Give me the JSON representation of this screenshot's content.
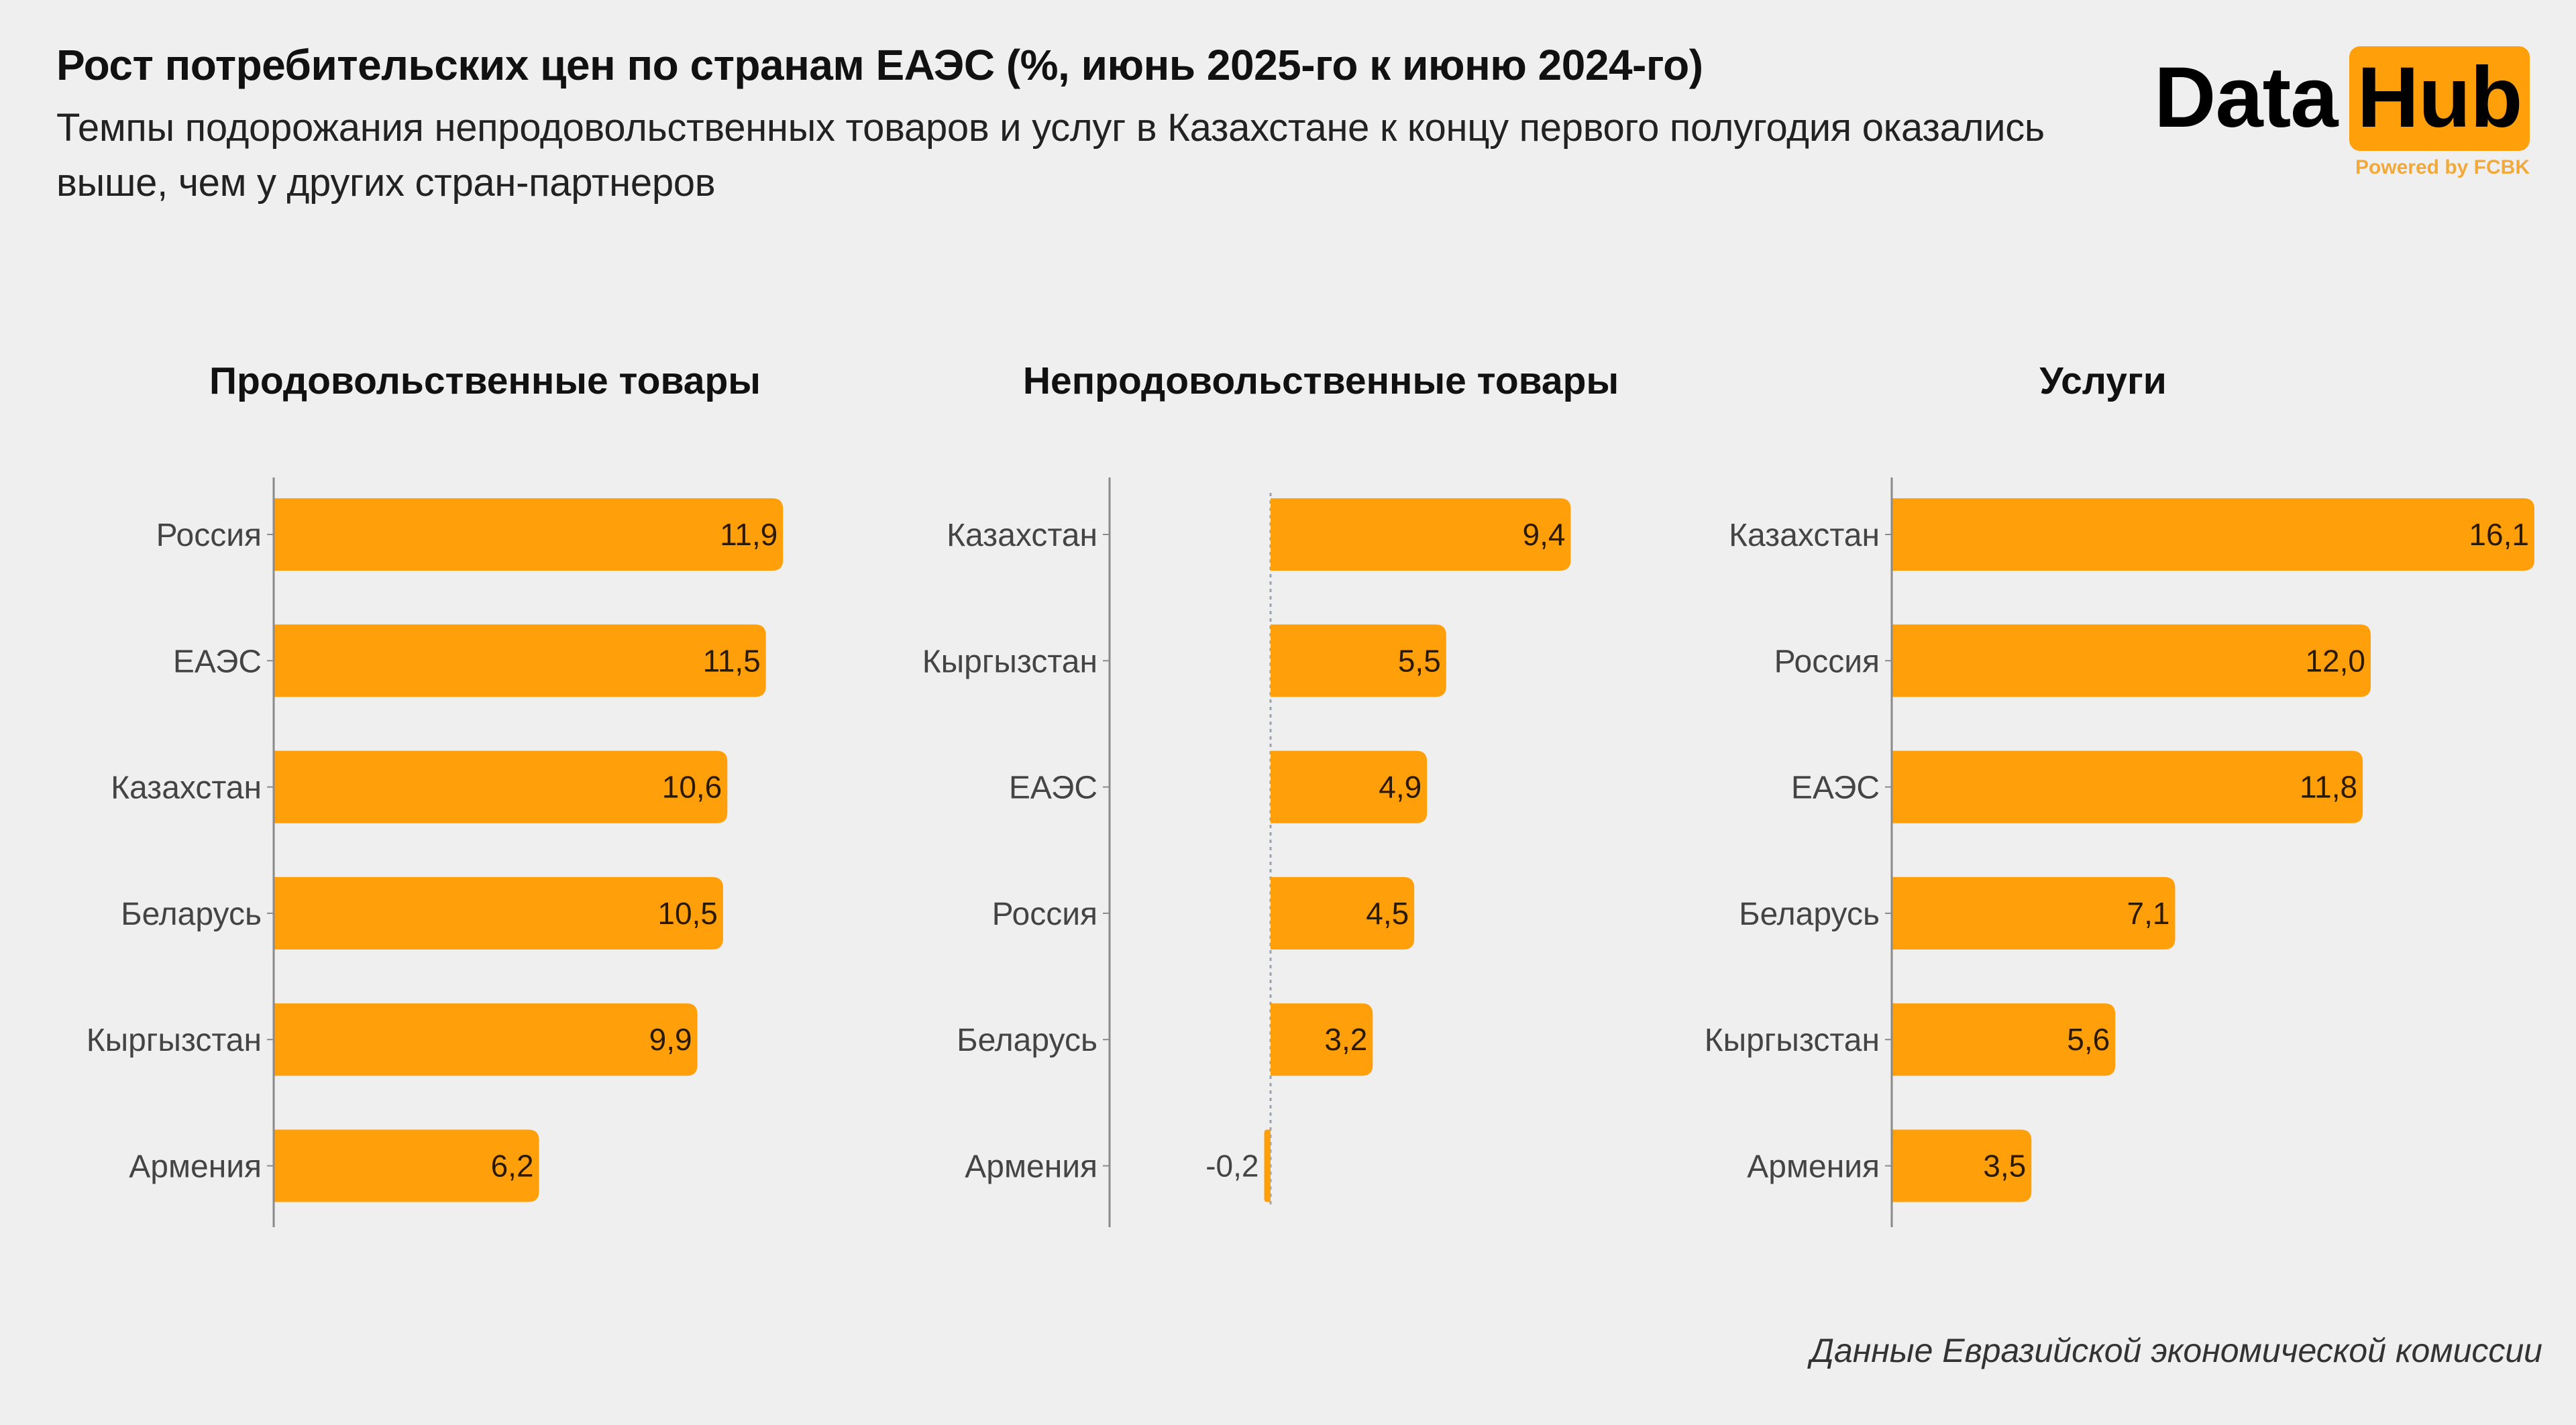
{
  "header": {
    "title": "Рост потребительских цен по странам ЕАЭС (%, июнь 2025-го к июню 2024-го)",
    "subtitle": "Темпы подорожания непродовольственных товаров и услуг в Казахстане к концу первого полугодия оказались выше, чем у других стран-партнеров"
  },
  "logo": {
    "word1": "Data",
    "word2": "Hub",
    "tagline": "Powered by FCBK"
  },
  "colors": {
    "bar": "#ff9f0a",
    "background": "#efefef",
    "axis": "#8a8a8a",
    "logo_box": "#ff9f0a",
    "tagline": "#f2a93a"
  },
  "chart_data": [
    {
      "type": "bar",
      "orientation": "horizontal",
      "title": "Продовольственные товары",
      "categories": [
        "Россия",
        "ЕАЭС",
        "Казахстан",
        "Беларусь",
        "Кыргызстан",
        "Армения"
      ],
      "values": [
        11.9,
        11.5,
        10.6,
        10.5,
        9.9,
        6.2
      ],
      "labels": [
        "11,9",
        "11,5",
        "10,6",
        "10,5",
        "9,9",
        "6,2"
      ],
      "xlim": [
        0,
        12.1
      ],
      "grid": false
    },
    {
      "type": "bar",
      "orientation": "horizontal",
      "title": "Непродовольственные товары",
      "categories": [
        "Казахстан",
        "Кыргызстан",
        "ЕАЭС",
        "Россия",
        "Беларусь",
        "Армения"
      ],
      "values": [
        9.4,
        5.5,
        4.9,
        4.5,
        3.2,
        -0.2
      ],
      "labels": [
        "9,4",
        "5,5",
        "4,9",
        "4,5",
        "3,2",
        "-0,2"
      ],
      "xlim": [
        -5.0,
        12.0
      ],
      "grid": false
    },
    {
      "type": "bar",
      "orientation": "horizontal",
      "title": "Услуги",
      "categories": [
        "Казахстан",
        "Россия",
        "ЕАЭС",
        "Беларусь",
        "Кыргызстан",
        "Армения"
      ],
      "values": [
        16.1,
        12.0,
        11.8,
        7.1,
        5.6,
        3.5
      ],
      "labels": [
        "16,1",
        "12,0",
        "11,8",
        "7,1",
        "5,6",
        "3,5"
      ],
      "xlim": [
        0,
        16.2
      ],
      "grid": false
    }
  ],
  "source": "Данные Евразийской экономической комиссии"
}
